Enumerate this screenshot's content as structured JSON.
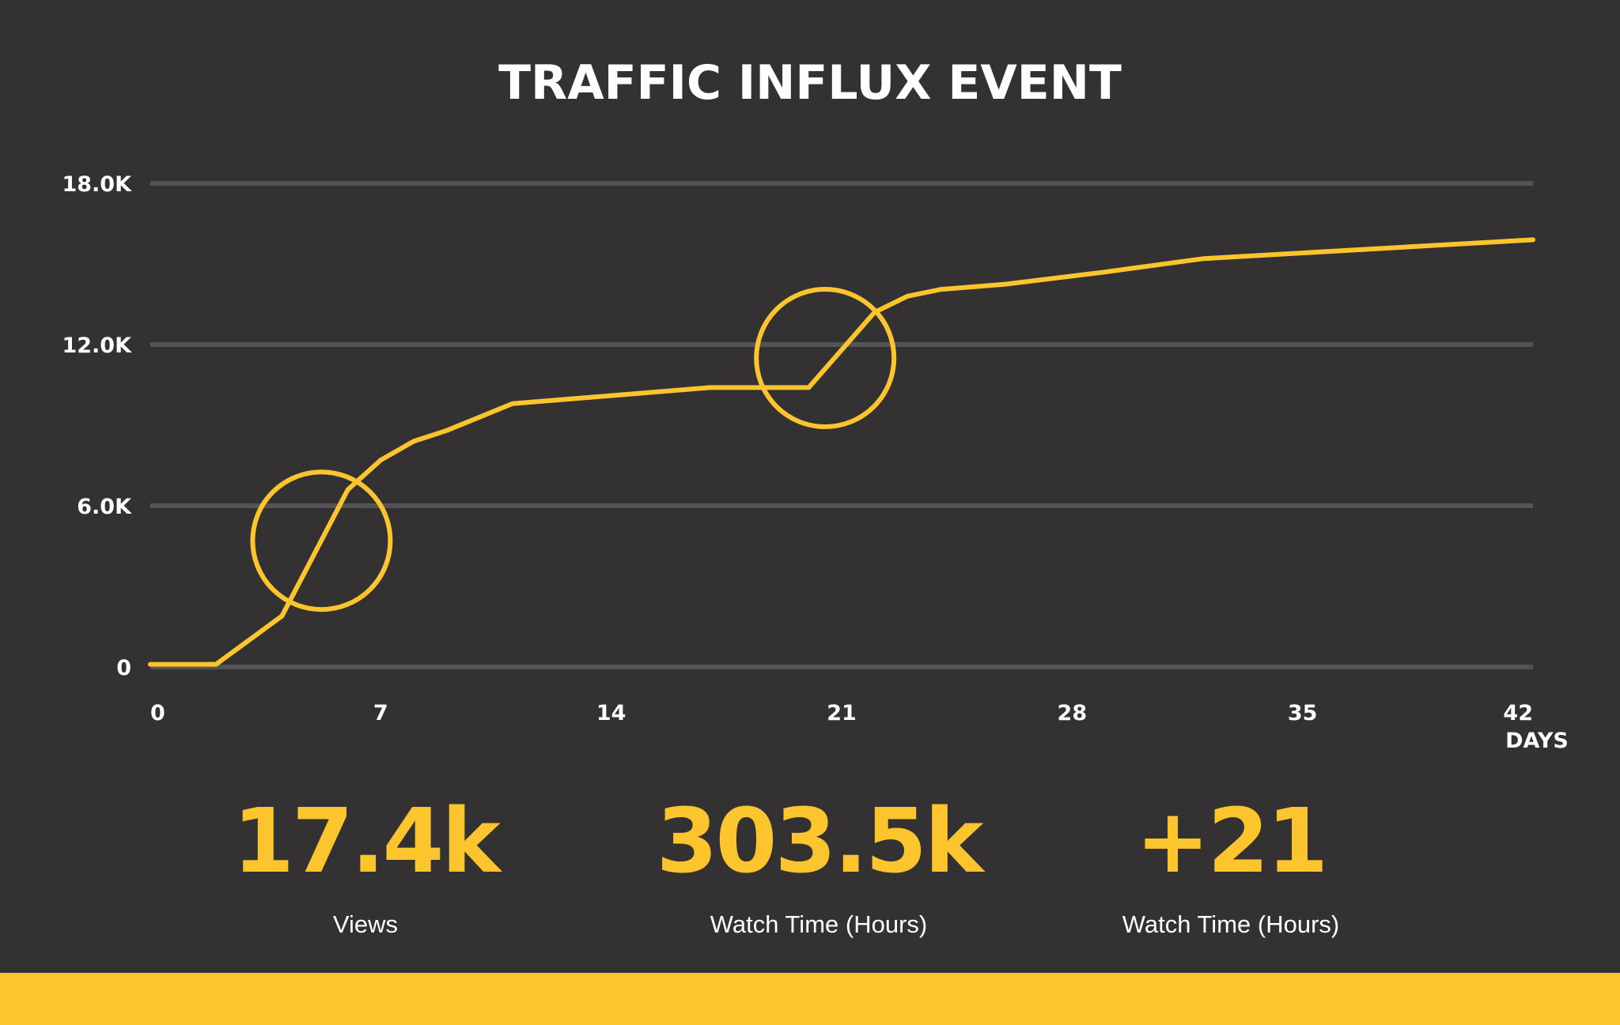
{
  "colors": {
    "background": "#333132",
    "accent": "#fcc52e",
    "grid": "#555455",
    "text": "#ffffff"
  },
  "chart_data": {
    "type": "line",
    "title": "TRAFFIC INFLUX EVENT",
    "xlabel": "DAYS",
    "ylabel": "",
    "x_ticks": [
      "0",
      "7",
      "14",
      "21",
      "28",
      "35",
      "42"
    ],
    "y_ticks": [
      "0",
      "6.0K",
      "12.0K",
      "18.0K"
    ],
    "xlim": [
      0,
      42
    ],
    "ylim": [
      0,
      18000
    ],
    "grid": "horizontal",
    "series": [
      {
        "color": "#fcc52e",
        "x": [
          0,
          2,
          4,
          6,
          7,
          8,
          9,
          11,
          14,
          17,
          20,
          22,
          23,
          24,
          26,
          29,
          32,
          42
        ],
        "y": [
          100,
          100,
          1900,
          6600,
          7700,
          8400,
          8800,
          9800,
          10100,
          10400,
          10400,
          13200,
          13800,
          14050,
          14250,
          14700,
          15200,
          15900
        ]
      }
    ],
    "highlights": [
      {
        "x": 5.2,
        "y": 4700,
        "kind": "circle"
      },
      {
        "x": 20.5,
        "y": 11500,
        "kind": "circle"
      }
    ]
  },
  "stats": [
    {
      "value": "17.4k",
      "label": "Views"
    },
    {
      "value": "303.5k",
      "label": "Watch Time (Hours)"
    },
    {
      "value": "+21",
      "label": "Watch Time (Hours)"
    }
  ]
}
